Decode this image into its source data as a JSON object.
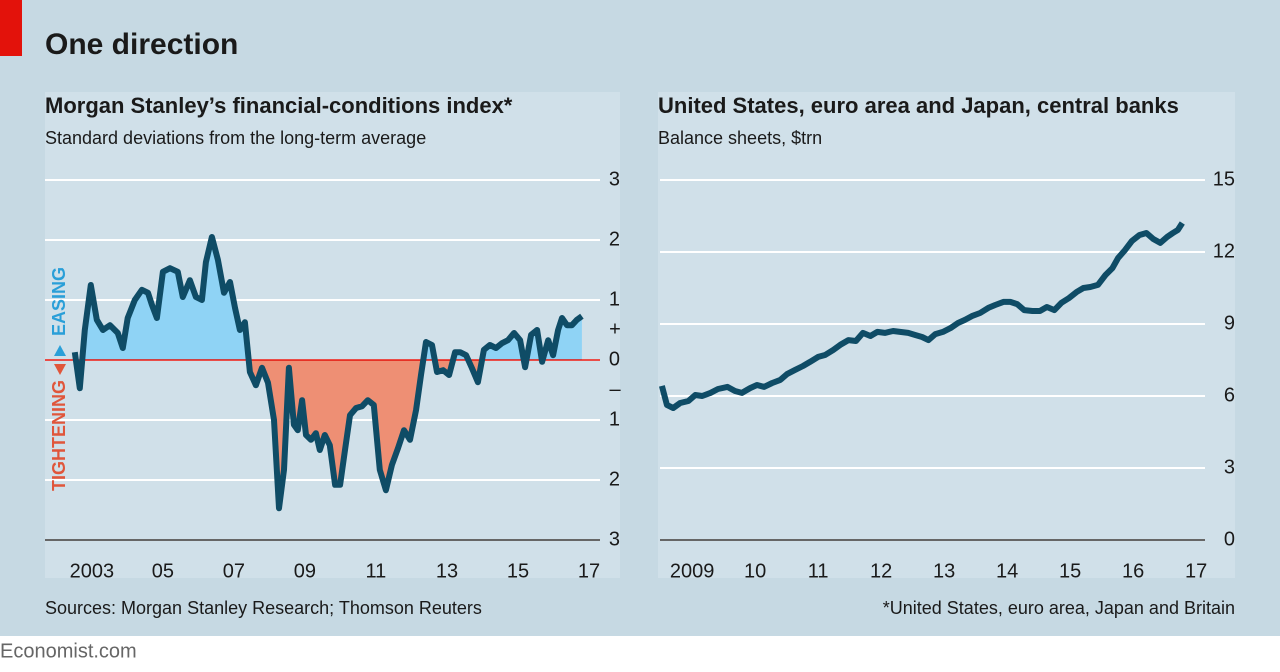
{
  "title": "One direction",
  "brand": "Economist.com",
  "chart_data": [
    {
      "type": "line",
      "title": "Morgan Stanley’s financial-conditions index*",
      "subtitle": "Standard deviations from the long-term average",
      "source": "Sources: Morgan Stanley Research; Thomson Reuters",
      "annotations": {
        "easing": "EASING",
        "tightening": "TIGHTENING",
        "plus": "+",
        "minus": "–"
      },
      "color": "#0f4c66",
      "fill_above": "#8fd3f5",
      "fill_below": "#ee8f74",
      "zero_line_color": "#e3120b",
      "grid": true,
      "xlim": [
        2001.68,
        2017.31
      ],
      "ylim": [
        -3,
        3
      ],
      "xticks": [
        2003,
        {
          "value": 2005,
          "label": "05"
        },
        {
          "value": 2007,
          "label": "07"
        },
        {
          "value": 2009,
          "label": "09"
        },
        {
          "value": 2011,
          "label": "11"
        },
        {
          "value": 2013,
          "label": "13"
        },
        {
          "value": 2015,
          "label": "15"
        },
        {
          "value": 2017,
          "label": "17"
        }
      ],
      "yticks": [
        3,
        2,
        1,
        0,
        {
          "value": -1,
          "label": "1"
        },
        {
          "value": -2,
          "label": "2"
        },
        {
          "value": -3,
          "label": "3"
        }
      ],
      "x": [
        2002.52,
        2002.66,
        2002.8,
        2002.97,
        2003.14,
        2003.31,
        2003.51,
        2003.73,
        2003.87,
        2004.01,
        2004.21,
        2004.41,
        2004.58,
        2004.69,
        2004.83,
        2005.0,
        2005.2,
        2005.42,
        2005.56,
        2005.76,
        2005.93,
        2006.1,
        2006.21,
        2006.38,
        2006.55,
        2006.72,
        2006.89,
        2007.03,
        2007.17,
        2007.31,
        2007.45,
        2007.62,
        2007.79,
        2007.96,
        2008.13,
        2008.27,
        2008.41,
        2008.55,
        2008.69,
        2008.8,
        2008.92,
        2009.03,
        2009.17,
        2009.31,
        2009.42,
        2009.56,
        2009.7,
        2009.85,
        2009.99,
        2010.13,
        2010.27,
        2010.44,
        2010.61,
        2010.77,
        2010.94,
        2011.11,
        2011.28,
        2011.45,
        2011.62,
        2011.79,
        2011.96,
        2012.13,
        2012.27,
        2012.41,
        2012.58,
        2012.72,
        2012.89,
        2013.06,
        2013.23,
        2013.37,
        2013.54,
        2013.7,
        2013.87,
        2014.04,
        2014.21,
        2014.38,
        2014.55,
        2014.72,
        2014.89,
        2015.06,
        2015.2,
        2015.37,
        2015.54,
        2015.68,
        2015.85,
        2015.99,
        2016.13,
        2016.24,
        2016.38,
        2016.52,
        2016.66,
        2016.8
      ],
      "values": [
        0.13,
        -0.47,
        0.5,
        1.25,
        0.67,
        0.5,
        0.58,
        0.45,
        0.2,
        0.7,
        1.0,
        1.17,
        1.12,
        0.92,
        0.7,
        1.47,
        1.53,
        1.47,
        1.05,
        1.33,
        1.05,
        1.0,
        1.63,
        2.05,
        1.67,
        1.12,
        1.3,
        0.87,
        0.5,
        0.63,
        -0.2,
        -0.42,
        -0.13,
        -0.38,
        -1.0,
        -2.47,
        -1.83,
        -0.13,
        -1.08,
        -1.17,
        -0.67,
        -1.25,
        -1.33,
        -1.22,
        -1.5,
        -1.25,
        -1.42,
        -2.08,
        -2.08,
        -1.5,
        -0.92,
        -0.8,
        -0.77,
        -0.67,
        -0.75,
        -1.83,
        -2.17,
        -1.75,
        -1.47,
        -1.17,
        -1.33,
        -0.83,
        -0.25,
        0.3,
        0.25,
        -0.2,
        -0.17,
        -0.25,
        0.13,
        0.13,
        0.08,
        -0.13,
        -0.37,
        0.17,
        0.25,
        0.2,
        0.28,
        0.33,
        0.45,
        0.33,
        -0.12,
        0.42,
        0.5,
        -0.03,
        0.33,
        0.08,
        0.5,
        0.7,
        0.58,
        0.58,
        0.67,
        0.73
      ]
    },
    {
      "type": "line",
      "title": "United States, euro area and Japan, central banks",
      "subtitle": "Balance sheets, $trn",
      "source": "*United States, euro area, Japan and Britain",
      "color": "#0f4c66",
      "grid": true,
      "xlim": [
        2008.49,
        2017.14
      ],
      "ylim": [
        0,
        15
      ],
      "xticks": [
        2009,
        {
          "value": 2010,
          "label": "10"
        },
        {
          "value": 2011,
          "label": "11"
        },
        {
          "value": 2012,
          "label": "12"
        },
        {
          "value": 2013,
          "label": "13"
        },
        {
          "value": 2014,
          "label": "14"
        },
        {
          "value": 2015,
          "label": "15"
        },
        {
          "value": 2016,
          "label": "16"
        },
        {
          "value": 2017,
          "label": "17"
        }
      ],
      "yticks": [
        0,
        3,
        6,
        9,
        12,
        15
      ],
      "x": [
        2008.52,
        2008.6,
        2008.7,
        2008.81,
        2008.94,
        2009.05,
        2009.16,
        2009.29,
        2009.41,
        2009.56,
        2009.68,
        2009.79,
        2009.92,
        2010.03,
        2010.14,
        2010.27,
        2010.4,
        2010.51,
        2010.63,
        2010.76,
        2010.87,
        2011.0,
        2011.11,
        2011.24,
        2011.35,
        2011.48,
        2011.6,
        2011.71,
        2011.83,
        2011.94,
        2012.06,
        2012.19,
        2012.3,
        2012.43,
        2012.54,
        2012.65,
        2012.75,
        2012.86,
        2012.98,
        2013.1,
        2013.22,
        2013.33,
        2013.44,
        2013.57,
        2013.7,
        2013.81,
        2013.94,
        2014.05,
        2014.16,
        2014.27,
        2014.4,
        2014.52,
        2014.63,
        2014.75,
        2014.86,
        2014.98,
        2015.1,
        2015.21,
        2015.32,
        2015.44,
        2015.56,
        2015.67,
        2015.76,
        2015.87,
        2015.98,
        2016.1,
        2016.21,
        2016.32,
        2016.43,
        2016.54,
        2016.63,
        2016.71,
        2016.78
      ],
      "values": [
        6.42,
        5.63,
        5.5,
        5.71,
        5.79,
        6.04,
        6.0,
        6.13,
        6.29,
        6.38,
        6.21,
        6.13,
        6.33,
        6.46,
        6.38,
        6.54,
        6.67,
        6.92,
        7.08,
        7.25,
        7.42,
        7.63,
        7.71,
        7.92,
        8.13,
        8.33,
        8.29,
        8.63,
        8.5,
        8.67,
        8.63,
        8.71,
        8.67,
        8.63,
        8.54,
        8.46,
        8.33,
        8.58,
        8.67,
        8.83,
        9.04,
        9.17,
        9.33,
        9.46,
        9.67,
        9.79,
        9.92,
        9.92,
        9.83,
        9.58,
        9.54,
        9.54,
        9.71,
        9.58,
        9.88,
        10.08,
        10.33,
        10.5,
        10.54,
        10.63,
        11.04,
        11.33,
        11.75,
        12.08,
        12.46,
        12.71,
        12.79,
        12.54,
        12.38,
        12.63,
        12.79,
        12.92,
        13.21
      ]
    }
  ]
}
